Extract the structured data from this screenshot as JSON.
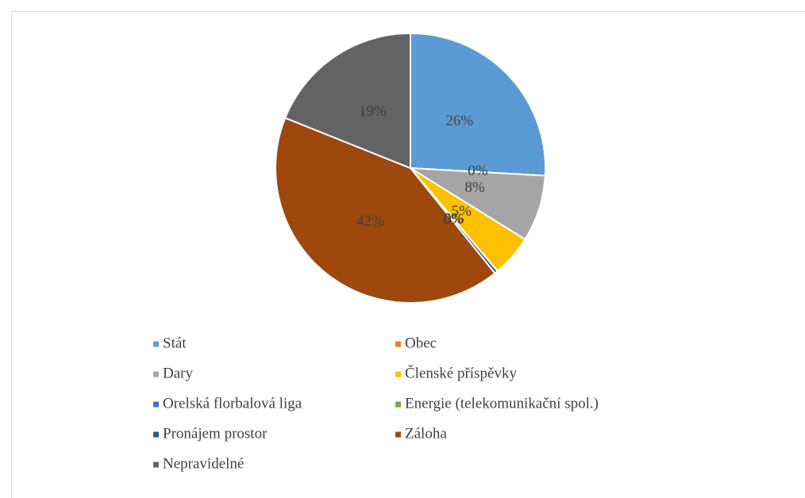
{
  "chart_data": {
    "type": "pie",
    "categories": [
      "Stát",
      "Obec",
      "Dary",
      "Členské příspěvky",
      "Orelská florbalová liga",
      "Energie (telekomunikační spol.)",
      "Pronájem prostor",
      "Záloha",
      "Nepravidelné"
    ],
    "values": [
      26,
      0,
      8,
      5,
      0,
      0,
      0.4,
      42,
      19
    ],
    "value_labels": [
      "26%",
      "0%",
      "8%",
      "5%",
      "0%",
      "0%",
      "0%",
      "42%",
      "19%"
    ],
    "colors": [
      "#5b9bd5",
      "#ed7d31",
      "#a5a5a5",
      "#ffc000",
      "#4472c4",
      "#70ad47",
      "#255e91",
      "#9e480e",
      "#636363"
    ],
    "legend": "bottom"
  }
}
